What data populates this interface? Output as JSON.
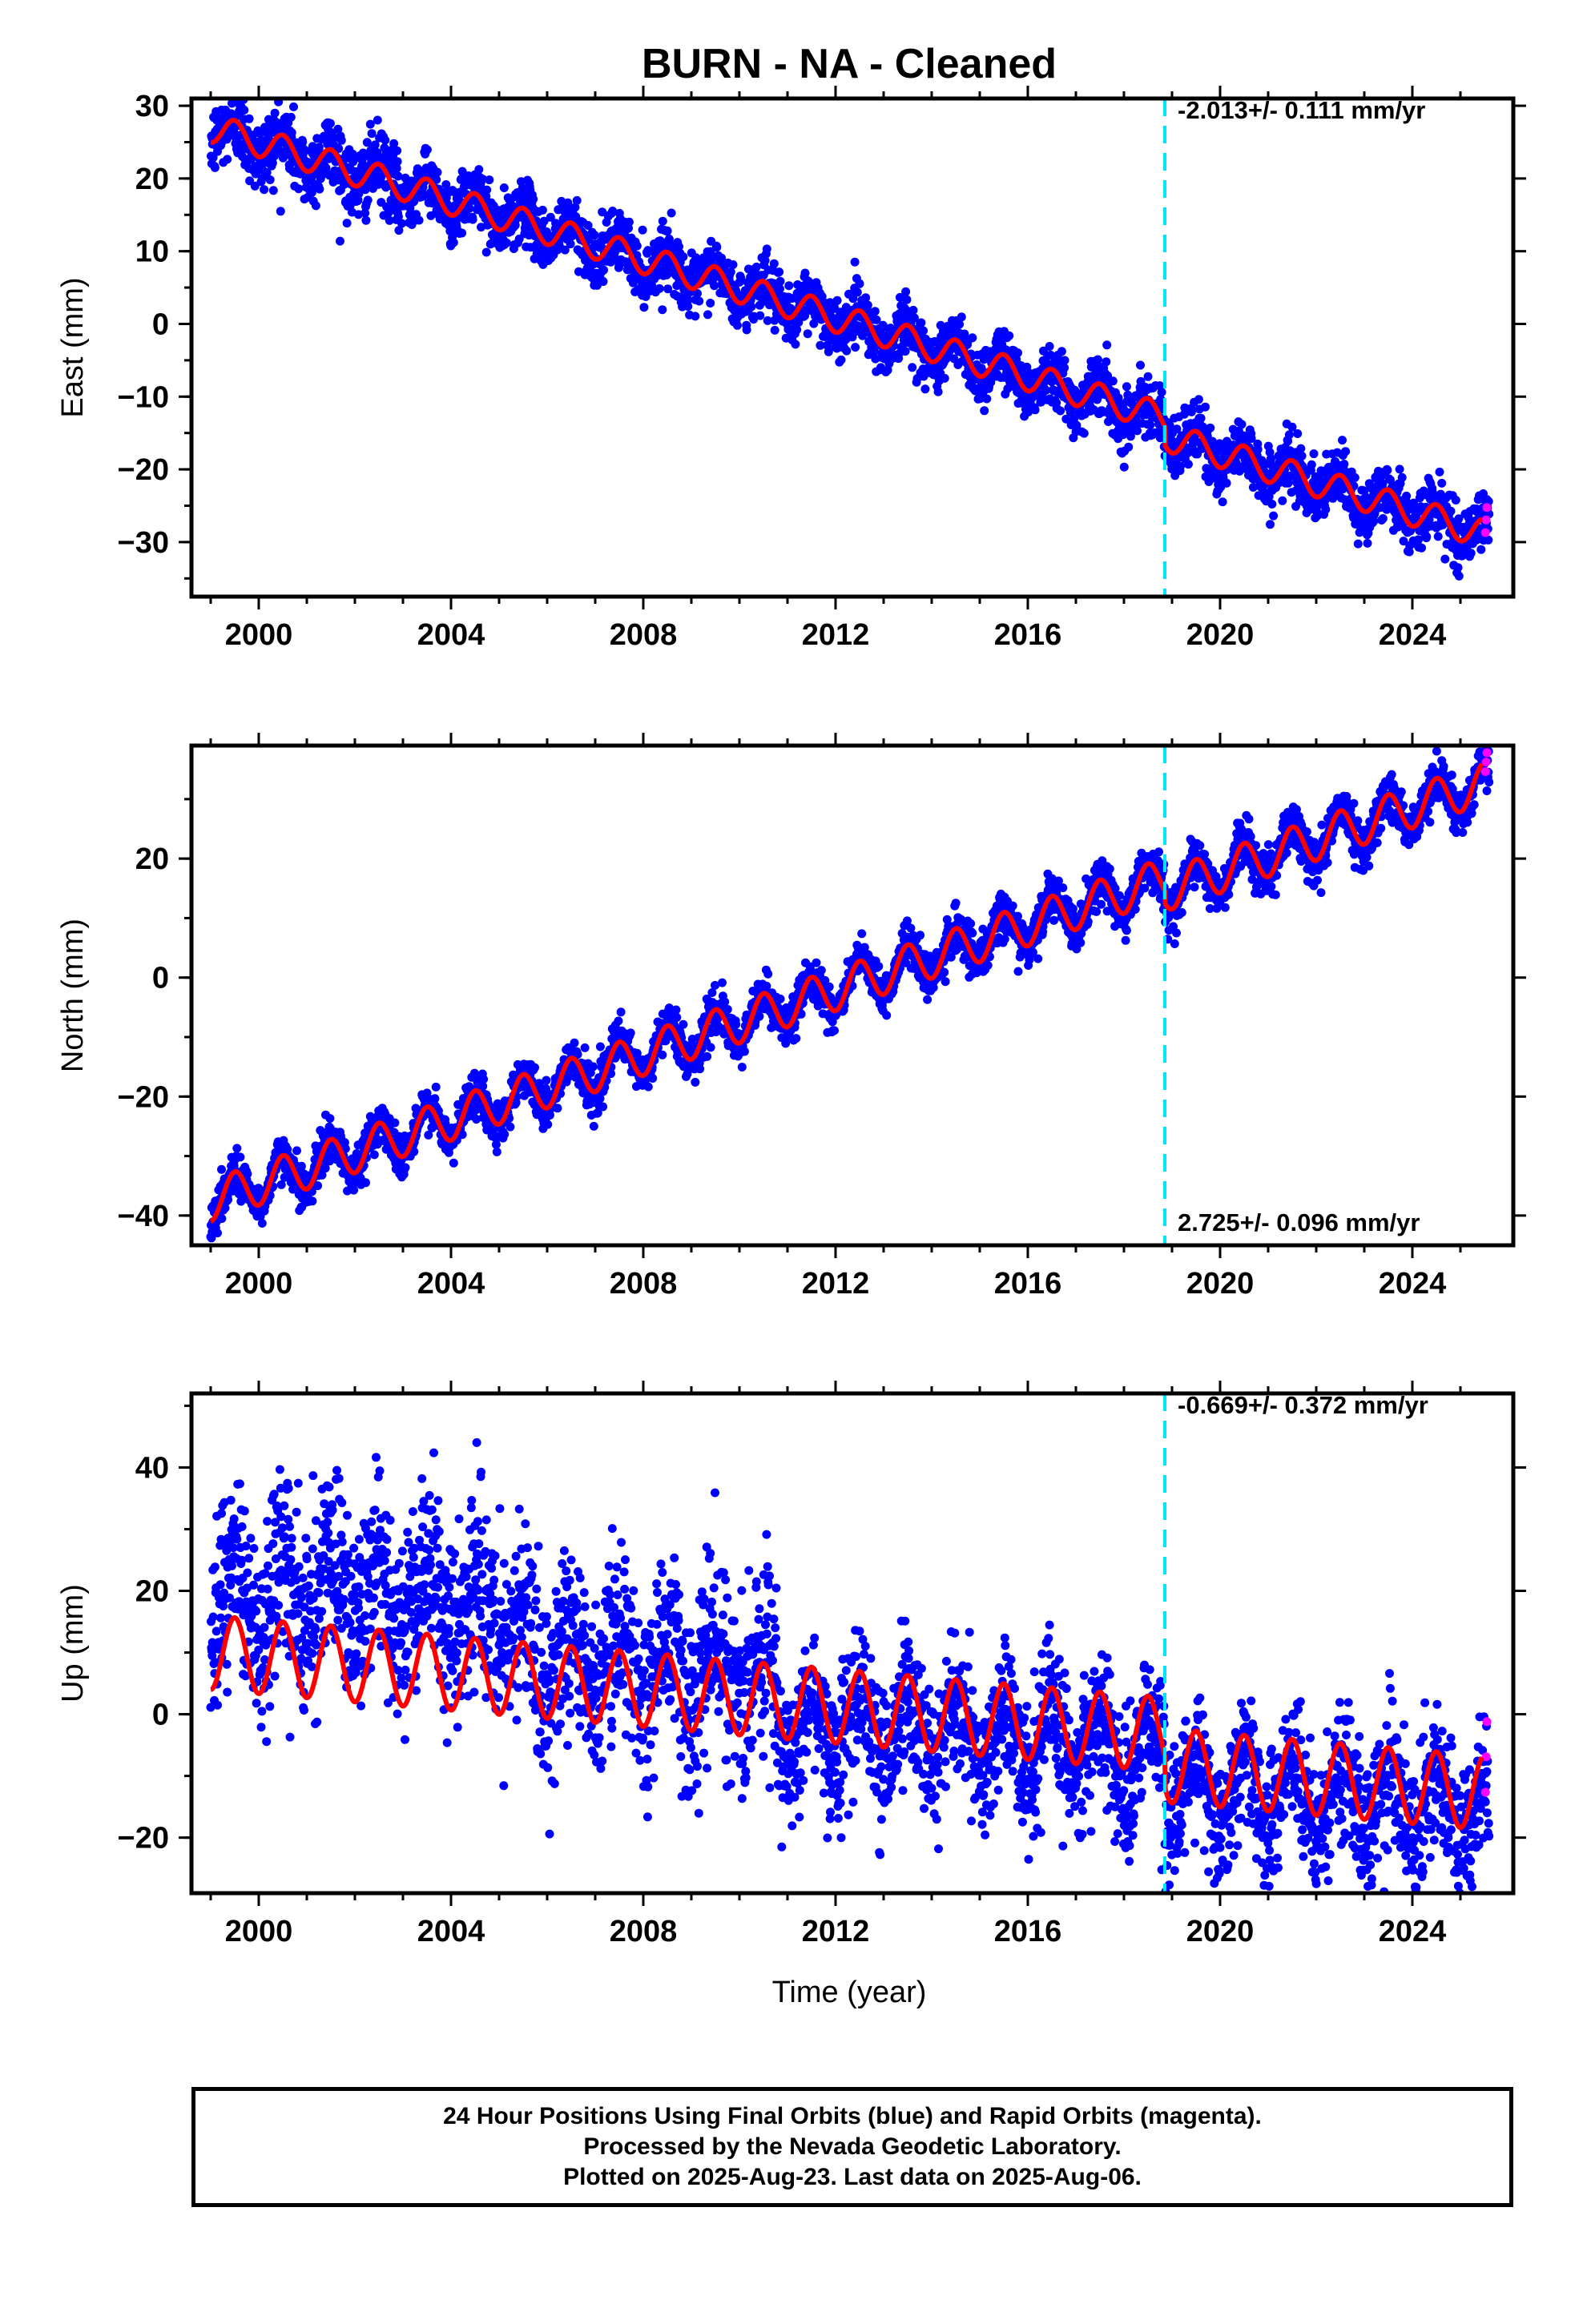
{
  "title": "BURN  - NA - Cleaned",
  "colors": {
    "final": "#0000ff",
    "rapid": "#ff00ff",
    "fit": "#ff0000",
    "break": "#00e5ff"
  },
  "xticks": [
    2000,
    2004,
    2008,
    2012,
    2016,
    2020,
    2024
  ],
  "xlabel": "Time (year)",
  "chart_data": [
    {
      "type": "scatter",
      "component": "East",
      "ylabel": "East (mm)",
      "yticks": [
        30,
        20,
        10,
        0,
        -10,
        -20,
        -30
      ],
      "xlim": [
        1998.6,
        2026.1
      ],
      "ylim": [
        -37.5,
        31
      ],
      "start": 27.0,
      "rate": -2.013,
      "step": {
        "year": 2018.85,
        "size": -2.5
      },
      "annual_amplitude": 2.0,
      "noise": 2.0,
      "rate_label": "-2.013+/- 0.111 mm/yr",
      "rate_label_position": "top-right",
      "break_year": 2018.85
    },
    {
      "type": "scatter",
      "component": "North",
      "ylabel": "North (mm)",
      "yticks": [
        20,
        0,
        -20,
        -40
      ],
      "xlim": [
        1998.6,
        2026.1
      ],
      "ylim": [
        -45,
        39
      ],
      "start": -37.5,
      "rate": 2.725,
      "step": {
        "year": 2018.85,
        "size": -2.0
      },
      "annual_amplitude": 3.5,
      "noise": 1.8,
      "rate_label": "2.725+/- 0.096 mm/yr",
      "rate_label_position": "bottom-right",
      "break_year": 2018.85
    },
    {
      "type": "scatter",
      "component": "Up",
      "ylabel": "Up (mm)",
      "yticks": [
        40,
        20,
        0,
        -20
      ],
      "xlim": [
        1998.6,
        2026.1
      ],
      "ylim": [
        -29,
        52
      ],
      "start": 10.0,
      "rate": -0.669,
      "step": {
        "year": 2018.85,
        "size": -5.0
      },
      "annual_amplitude": 6.0,
      "noise": 6.5,
      "rate_label": "-0.669+/- 0.372 mm/yr",
      "rate_label_position": "top-right",
      "break_year": 2018.85
    }
  ],
  "footer": {
    "line1": "24 Hour Positions Using Final Orbits (blue) and Rapid Orbits (magenta).",
    "line2": "Processed by the Nevada Geodetic Laboratory.",
    "line3": "Plotted on 2025-Aug-23. Last data on 2025-Aug-06."
  }
}
